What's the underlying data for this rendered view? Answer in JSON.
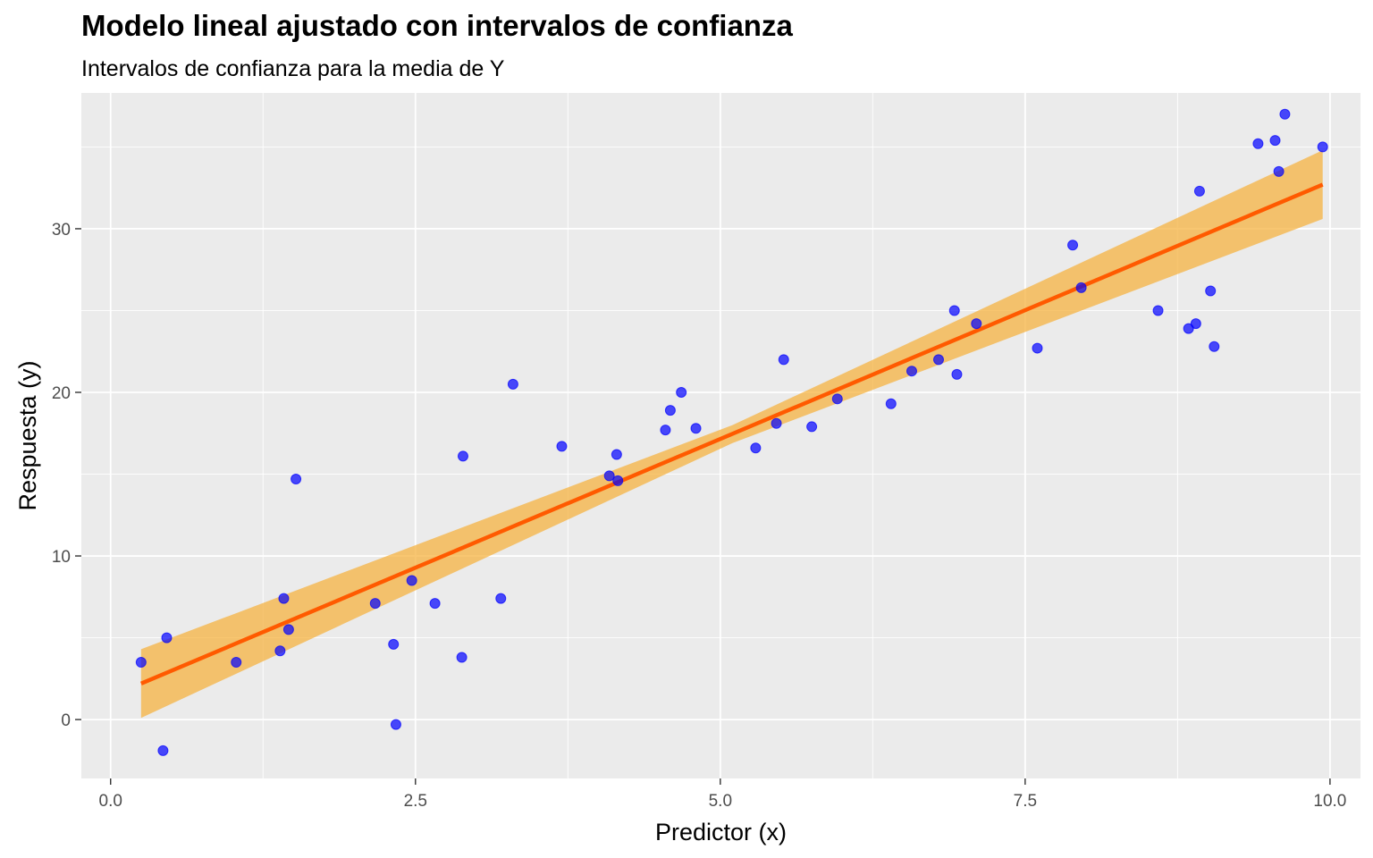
{
  "chart_data": {
    "type": "scatter",
    "title": "Modelo lineal ajustado con intervalos de confianza",
    "subtitle": "Intervalos de confianza para la media de Y",
    "xlabel": "Predictor (x)",
    "ylabel": "Respuesta (y)",
    "xlim": [
      -0.24,
      10.25
    ],
    "ylim": [
      -3.6,
      38.3
    ],
    "x_ticks": [
      0.0,
      2.5,
      5.0,
      7.5,
      10.0
    ],
    "x_tick_labels": [
      "0.0",
      "2.5",
      "5.0",
      "7.5",
      "10.0"
    ],
    "y_ticks": [
      0,
      10,
      20,
      30
    ],
    "y_tick_labels": [
      "0",
      "10",
      "20",
      "30"
    ],
    "grid": true,
    "legend": "none",
    "colors": {
      "panel": "#ebebeb",
      "grid": "#ffffff",
      "points": "#0000ff",
      "fit_line": "#ff5a00",
      "ribbon": "#f5b342"
    },
    "points": [
      {
        "x": 0.25,
        "y": 3.5
      },
      {
        "x": 0.43,
        "y": -1.9
      },
      {
        "x": 0.46,
        "y": 5.0
      },
      {
        "x": 1.03,
        "y": 3.5
      },
      {
        "x": 1.39,
        "y": 4.2
      },
      {
        "x": 1.42,
        "y": 7.4
      },
      {
        "x": 1.46,
        "y": 5.5
      },
      {
        "x": 1.52,
        "y": 14.7
      },
      {
        "x": 2.17,
        "y": 7.1
      },
      {
        "x": 2.32,
        "y": 4.6
      },
      {
        "x": 2.34,
        "y": -0.3
      },
      {
        "x": 2.47,
        "y": 8.5
      },
      {
        "x": 2.66,
        "y": 7.1
      },
      {
        "x": 2.88,
        "y": 3.8
      },
      {
        "x": 2.89,
        "y": 16.1
      },
      {
        "x": 3.2,
        "y": 7.4
      },
      {
        "x": 3.3,
        "y": 20.5
      },
      {
        "x": 3.7,
        "y": 16.7
      },
      {
        "x": 4.09,
        "y": 14.9
      },
      {
        "x": 4.15,
        "y": 16.2
      },
      {
        "x": 4.16,
        "y": 14.6
      },
      {
        "x": 4.55,
        "y": 17.7
      },
      {
        "x": 4.59,
        "y": 18.9
      },
      {
        "x": 4.68,
        "y": 20.0
      },
      {
        "x": 4.8,
        "y": 17.8
      },
      {
        "x": 5.29,
        "y": 16.6
      },
      {
        "x": 5.46,
        "y": 18.1
      },
      {
        "x": 5.52,
        "y": 22.0
      },
      {
        "x": 5.75,
        "y": 17.9
      },
      {
        "x": 5.96,
        "y": 19.6
      },
      {
        "x": 6.4,
        "y": 19.3
      },
      {
        "x": 6.57,
        "y": 21.3
      },
      {
        "x": 6.79,
        "y": 22.0
      },
      {
        "x": 6.92,
        "y": 25.0
      },
      {
        "x": 6.94,
        "y": 21.1
      },
      {
        "x": 7.1,
        "y": 24.2
      },
      {
        "x": 7.6,
        "y": 22.7
      },
      {
        "x": 7.89,
        "y": 29.0
      },
      {
        "x": 7.96,
        "y": 26.4
      },
      {
        "x": 8.59,
        "y": 25.0
      },
      {
        "x": 8.84,
        "y": 23.9
      },
      {
        "x": 8.9,
        "y": 24.2
      },
      {
        "x": 8.93,
        "y": 32.3
      },
      {
        "x": 9.02,
        "y": 26.2
      },
      {
        "x": 9.05,
        "y": 22.8
      },
      {
        "x": 9.41,
        "y": 35.2
      },
      {
        "x": 9.55,
        "y": 35.4
      },
      {
        "x": 9.58,
        "y": 33.5
      },
      {
        "x": 9.63,
        "y": 37.0
      },
      {
        "x": 9.94,
        "y": 35.0
      }
    ],
    "fit": {
      "x": [
        0.25,
        9.94
      ],
      "y": [
        2.2,
        32.7
      ]
    },
    "confidence_band": {
      "x": [
        0.25,
        5.1,
        9.94
      ],
      "lower": [
        0.1,
        16.9,
        30.6
      ],
      "upper": [
        4.3,
        18.0,
        34.8
      ]
    }
  }
}
